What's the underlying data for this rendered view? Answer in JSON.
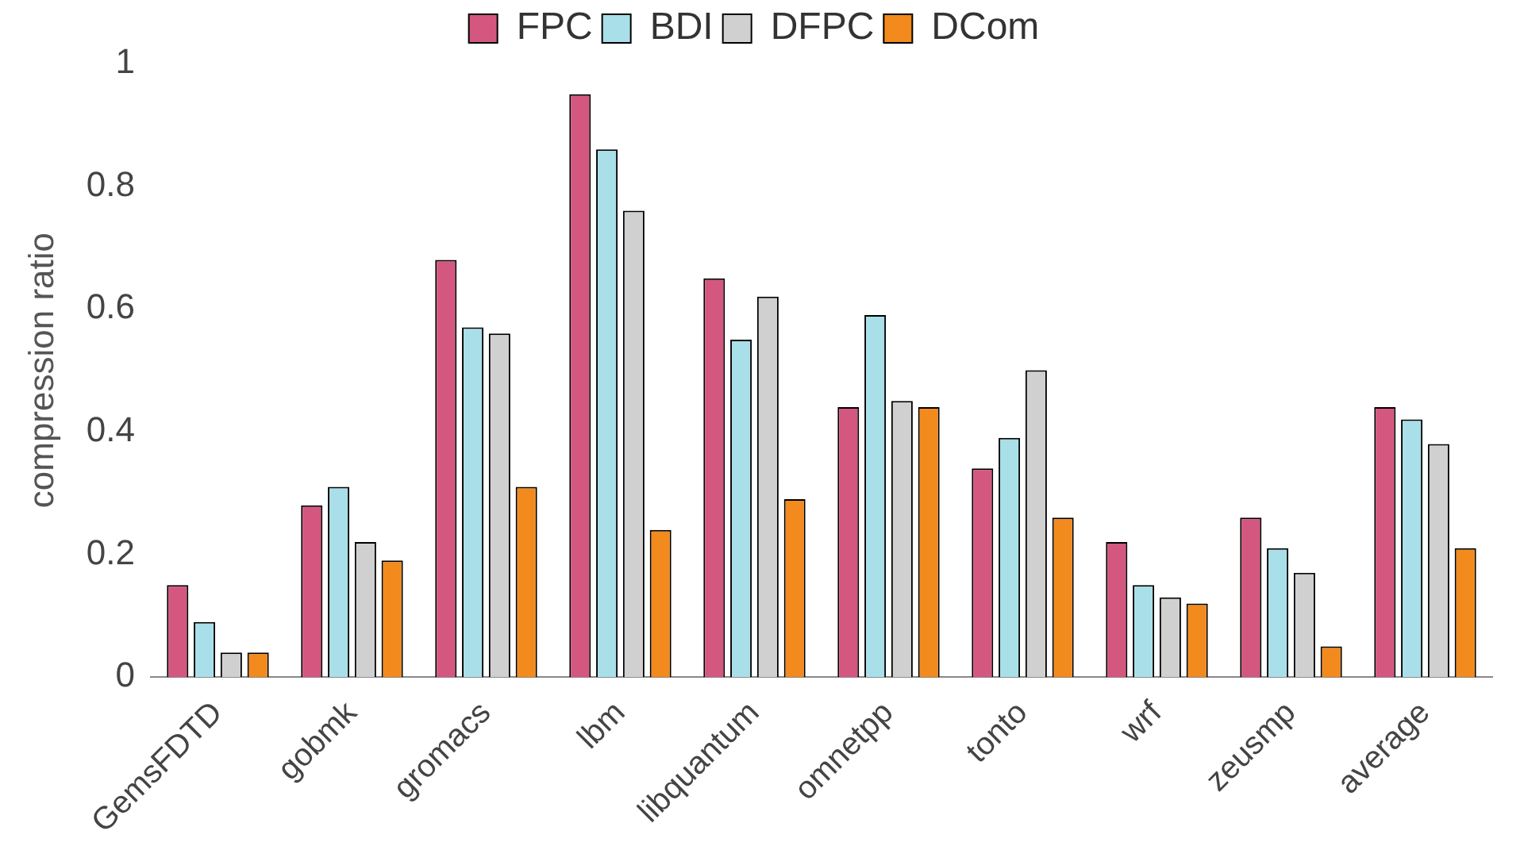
{
  "chart_data": {
    "type": "bar",
    "ylabel": "compression ratio",
    "categories": [
      "GemsFDTD",
      "gobmk",
      "gromacs",
      "lbm",
      "libquantum",
      "omnetpp",
      "tonto",
      "wrf",
      "zeusmp",
      "average"
    ],
    "series": [
      {
        "name": "FPC",
        "color": "#d4577f",
        "values": [
          0.15,
          0.28,
          0.68,
          0.95,
          0.65,
          0.44,
          0.34,
          0.22,
          0.26,
          0.44
        ]
      },
      {
        "name": "BDI",
        "color": "#a9dfe8",
        "values": [
          0.09,
          0.31,
          0.57,
          0.86,
          0.55,
          0.59,
          0.39,
          0.15,
          0.21,
          0.42
        ]
      },
      {
        "name": "DFPC",
        "color": "#d0d0d0",
        "values": [
          0.04,
          0.22,
          0.56,
          0.76,
          0.62,
          0.45,
          0.5,
          0.13,
          0.17,
          0.38
        ]
      },
      {
        "name": "DCom",
        "color": "#f28a1e",
        "values": [
          0.04,
          0.19,
          0.31,
          0.24,
          0.29,
          0.44,
          0.26,
          0.12,
          0.05,
          0.21
        ]
      }
    ],
    "ylim": [
      0,
      1
    ],
    "yticks": [
      0,
      0.2,
      0.4,
      0.6,
      0.8,
      1
    ],
    "grid": false,
    "legend": "top"
  }
}
